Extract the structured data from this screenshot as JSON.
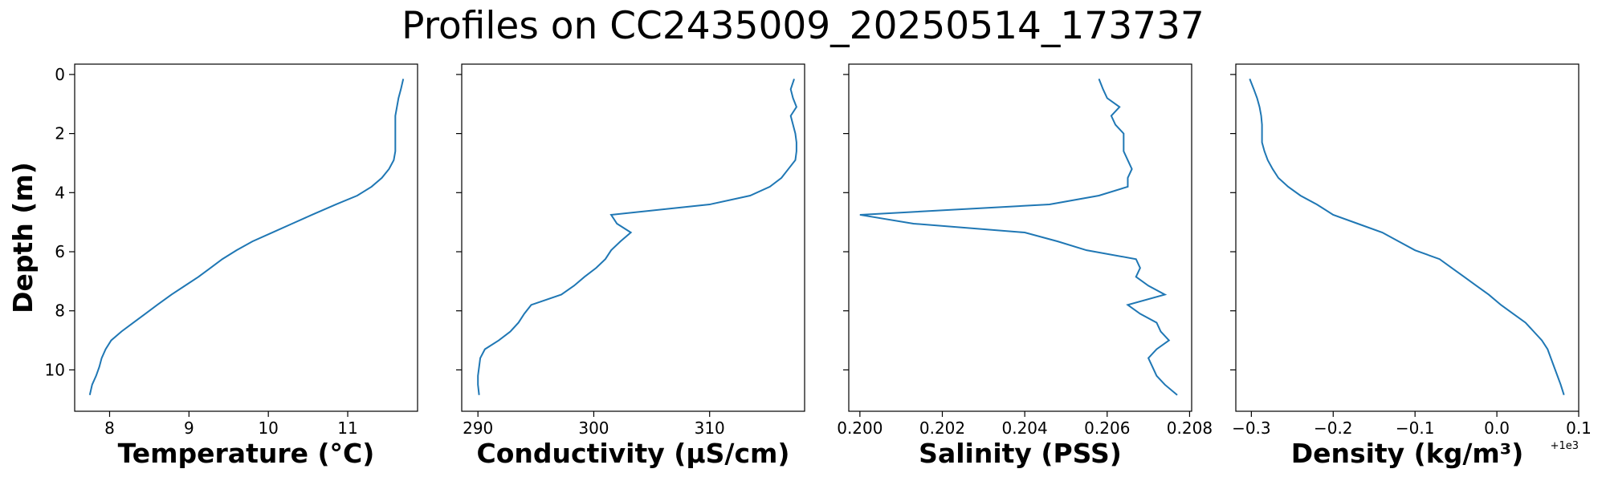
{
  "title": "Profiles on CC2435009_20250514_173737",
  "chart_data": [
    {
      "type": "line",
      "xlabel": "Temperature (°C)",
      "ylabel": "Depth (m)",
      "show_ytick_labels": true,
      "color": "#1f77b4",
      "xlim": [
        7.56,
        11.88
      ],
      "xticks": [
        8,
        9,
        10,
        11
      ],
      "ylim": [
        -0.35,
        11.4
      ],
      "y_inverted": true,
      "yticks": [
        0,
        2,
        4,
        6,
        8,
        10
      ],
      "x": [
        11.7,
        11.67,
        11.64,
        11.62,
        11.6,
        11.6,
        11.6,
        11.6,
        11.6,
        11.58,
        11.52,
        11.43,
        11.3,
        11.12,
        10.85,
        10.55,
        10.3,
        10.05,
        9.8,
        9.6,
        9.42,
        9.27,
        9.12,
        8.95,
        8.78,
        8.6,
        8.45,
        8.3,
        8.15,
        8.02,
        7.95,
        7.9,
        7.87,
        7.83,
        7.78,
        7.75
      ],
      "y": [
        0.15,
        0.5,
        0.8,
        1.1,
        1.4,
        1.7,
        2.0,
        2.3,
        2.6,
        2.9,
        3.2,
        3.5,
        3.8,
        4.1,
        4.4,
        4.75,
        5.05,
        5.35,
        5.65,
        5.95,
        6.25,
        6.55,
        6.85,
        7.15,
        7.45,
        7.8,
        8.1,
        8.4,
        8.7,
        9.0,
        9.3,
        9.6,
        9.9,
        10.2,
        10.5,
        10.85
      ]
    },
    {
      "type": "line",
      "xlabel": "Conductivity (µS/cm)",
      "show_ytick_labels": false,
      "color": "#1f77b4",
      "xlim": [
        288.6,
        318.2
      ],
      "xticks": [
        290,
        300,
        310
      ],
      "ylim": [
        -0.35,
        11.4
      ],
      "y_inverted": true,
      "yticks": [
        0,
        2,
        4,
        6,
        8,
        10
      ],
      "x": [
        317.3,
        317.0,
        317.2,
        317.5,
        317.0,
        317.2,
        317.4,
        317.5,
        317.5,
        317.4,
        316.8,
        316.2,
        315.2,
        313.5,
        310.0,
        301.5,
        302.0,
        303.2,
        302.3,
        301.5,
        301.0,
        300.2,
        299.2,
        298.3,
        297.2,
        294.6,
        294.0,
        293.5,
        292.8,
        291.8,
        290.6,
        290.2,
        290.1,
        290.0,
        290.0,
        290.1
      ],
      "y": [
        0.15,
        0.5,
        0.8,
        1.1,
        1.4,
        1.7,
        2.0,
        2.3,
        2.6,
        2.9,
        3.2,
        3.5,
        3.8,
        4.1,
        4.4,
        4.75,
        5.05,
        5.35,
        5.65,
        5.95,
        6.25,
        6.55,
        6.85,
        7.15,
        7.45,
        7.8,
        8.1,
        8.4,
        8.7,
        9.0,
        9.3,
        9.6,
        9.9,
        10.2,
        10.5,
        10.85
      ]
    },
    {
      "type": "line",
      "xlabel": "Salinity (PSS)",
      "show_ytick_labels": false,
      "color": "#1f77b4",
      "xlim": [
        0.19973,
        0.20805
      ],
      "xticks": [
        {
          "value": 0.2,
          "label": "0.200"
        },
        {
          "value": 0.202,
          "label": "0.202"
        },
        {
          "value": 0.204,
          "label": "0.204"
        },
        {
          "value": 0.206,
          "label": "0.206"
        },
        {
          "value": 0.208,
          "label": "0.208"
        }
      ],
      "ylim": [
        -0.35,
        11.4
      ],
      "y_inverted": true,
      "yticks": [
        0,
        2,
        4,
        6,
        8,
        10
      ],
      "x": [
        0.2058,
        0.2059,
        0.206,
        0.2063,
        0.2061,
        0.2062,
        0.2064,
        0.2064,
        0.2064,
        0.2065,
        0.2066,
        0.2065,
        0.2065,
        0.2058,
        0.2046,
        0.2,
        0.2013,
        0.204,
        0.2048,
        0.2055,
        0.2067,
        0.2068,
        0.2067,
        0.207,
        0.2074,
        0.2065,
        0.2068,
        0.2072,
        0.2073,
        0.2075,
        0.2072,
        0.207,
        0.2071,
        0.2072,
        0.2074,
        0.2077
      ],
      "y": [
        0.15,
        0.5,
        0.8,
        1.1,
        1.4,
        1.7,
        2.0,
        2.3,
        2.6,
        2.9,
        3.2,
        3.5,
        3.8,
        4.1,
        4.4,
        4.75,
        5.05,
        5.35,
        5.65,
        5.95,
        6.25,
        6.55,
        6.85,
        7.15,
        7.45,
        7.8,
        8.1,
        8.4,
        8.7,
        9.0,
        9.3,
        9.6,
        9.9,
        10.2,
        10.5,
        10.85
      ]
    },
    {
      "type": "line",
      "xlabel": "Density (kg/m³)",
      "show_ytick_labels": false,
      "color": "#1f77b4",
      "x_offset_text": "+1e3",
      "xlim": [
        999.681,
        1000.1
      ],
      "xticks": [
        {
          "value": 999.7,
          "label": "−0.3"
        },
        {
          "value": 999.8,
          "label": "−0.2"
        },
        {
          "value": 999.9,
          "label": "−0.1"
        },
        {
          "value": 1000.0,
          "label": "0.0"
        },
        {
          "value": 1000.1,
          "label": "0.1"
        }
      ],
      "ylim": [
        -0.35,
        11.4
      ],
      "y_inverted": true,
      "yticks": [
        0,
        2,
        4,
        6,
        8,
        10
      ],
      "x": [
        999.698,
        999.703,
        999.707,
        999.71,
        999.712,
        999.713,
        999.713,
        999.713,
        999.716,
        999.72,
        999.726,
        999.733,
        999.745,
        999.76,
        999.78,
        999.8,
        999.83,
        999.86,
        999.88,
        999.9,
        999.93,
        999.945,
        999.96,
        999.975,
        999.99,
        1000.005,
        1000.02,
        1000.035,
        1000.045,
        1000.055,
        1000.062,
        1000.066,
        1000.07,
        1000.074,
        1000.078,
        1000.082
      ],
      "y": [
        0.15,
        0.5,
        0.8,
        1.1,
        1.4,
        1.7,
        2.0,
        2.3,
        2.6,
        2.9,
        3.2,
        3.5,
        3.8,
        4.1,
        4.4,
        4.75,
        5.05,
        5.35,
        5.65,
        5.95,
        6.25,
        6.55,
        6.85,
        7.15,
        7.45,
        7.8,
        8.1,
        8.4,
        8.7,
        9.0,
        9.3,
        9.6,
        9.9,
        10.2,
        10.5,
        10.85
      ]
    }
  ]
}
